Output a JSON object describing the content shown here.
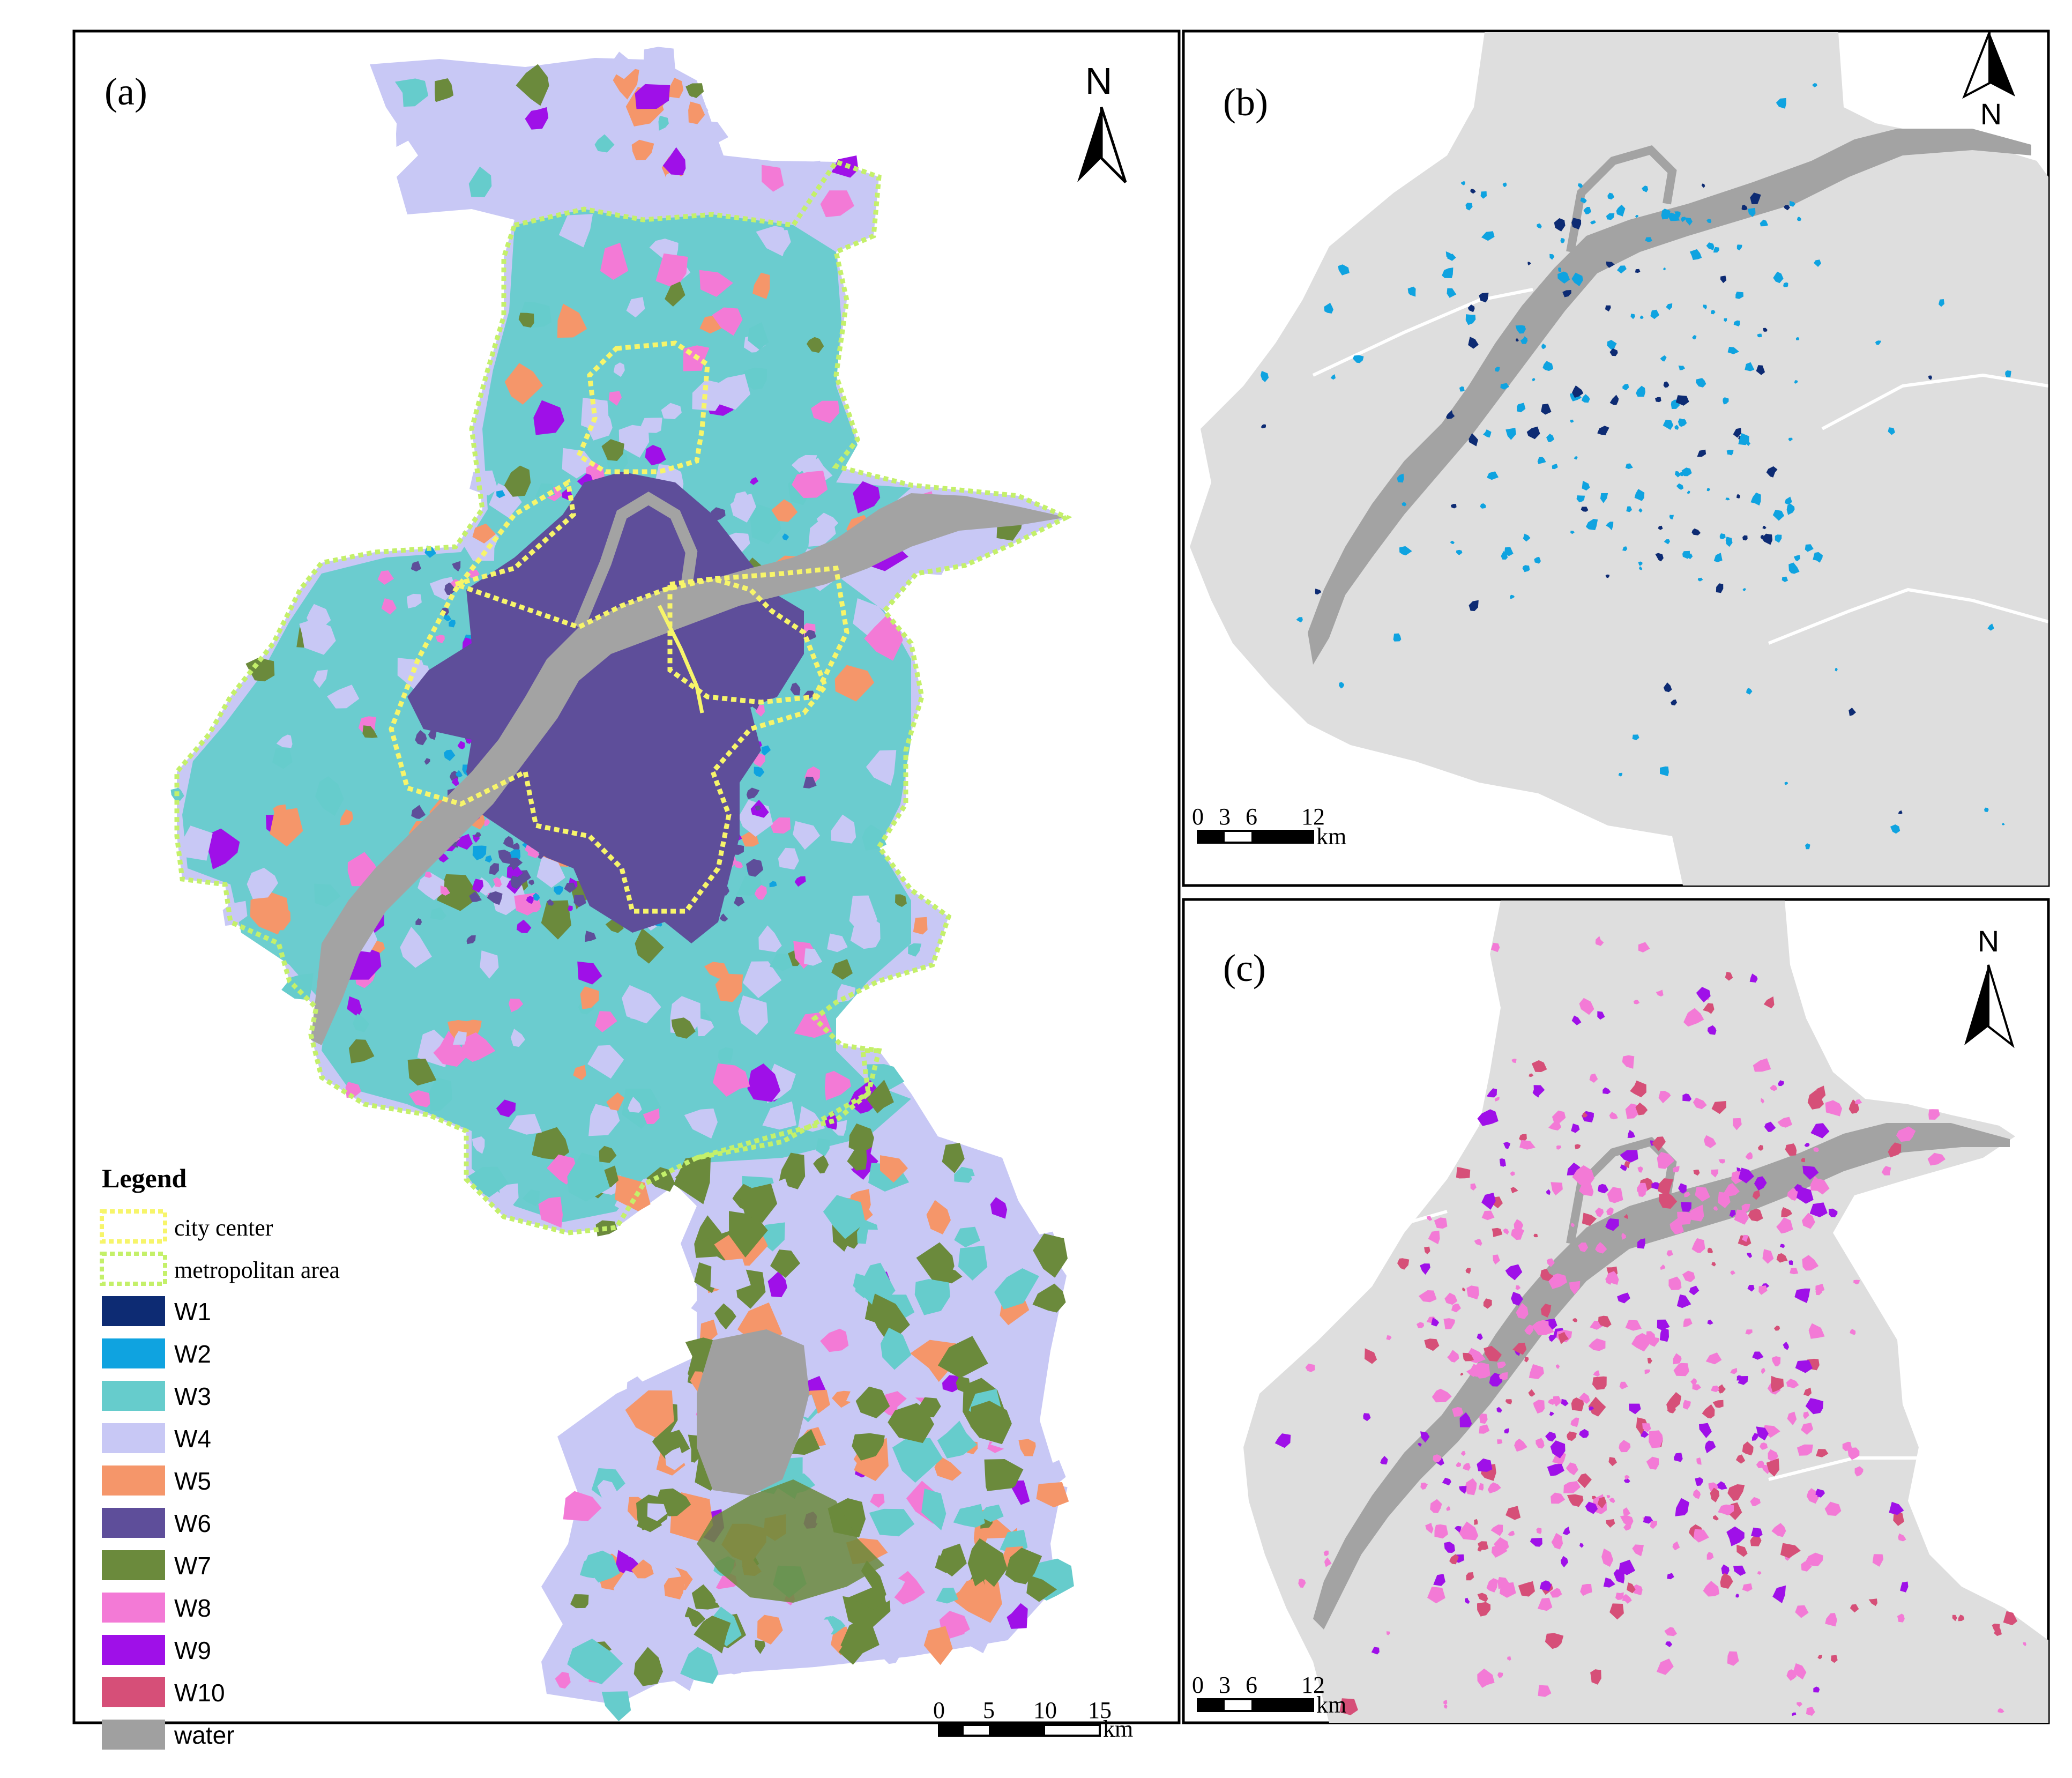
{
  "panels": {
    "a": {
      "label": "(a)"
    },
    "b": {
      "label": "(b)"
    },
    "c": {
      "label": "(c)"
    }
  },
  "north_label": "N",
  "scalebars": {
    "a": {
      "ticks": [
        "0",
        "5",
        "10",
        "15"
      ],
      "unit": "km"
    },
    "b": {
      "ticks": [
        "0",
        "3",
        "6",
        "12"
      ],
      "unit": "km"
    },
    "c": {
      "ticks": [
        "0",
        "3",
        "6",
        "12"
      ],
      "unit": "km"
    }
  },
  "legend": {
    "title": "Legend",
    "boundaries": [
      {
        "label": "city center",
        "color": "#f7f56a"
      },
      {
        "label": "metropolitan area",
        "color": "#c4f06a"
      }
    ],
    "classes": [
      {
        "label": "W1",
        "color": "#0d2b73"
      },
      {
        "label": "W2",
        "color": "#0fa3e0"
      },
      {
        "label": "W3",
        "color": "#66cccc"
      },
      {
        "label": "W4",
        "color": "#c8c8f5"
      },
      {
        "label": "W5",
        "color": "#f5966a"
      },
      {
        "label": "W6",
        "color": "#5e4e9a"
      },
      {
        "label": "W7",
        "color": "#6b8a3c"
      },
      {
        "label": "W8",
        "color": "#f37ad6"
      },
      {
        "label": "W9",
        "color": "#9f10e8"
      },
      {
        "label": "W10",
        "color": "#d64f78"
      },
      {
        "label": "water",
        "color": "#a0a0a0"
      }
    ]
  },
  "colors": {
    "frame": "#000000",
    "base": "#dedede",
    "river": "#a3a3a3"
  }
}
